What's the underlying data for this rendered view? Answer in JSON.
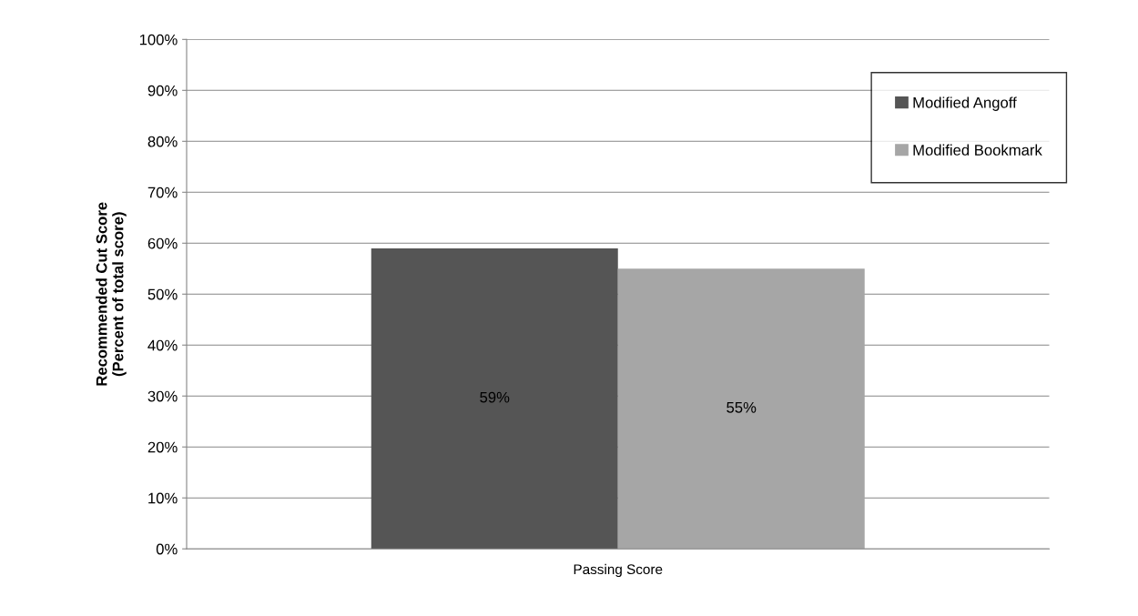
{
  "chart_data": {
    "type": "bar",
    "categories": [
      "Passing Score"
    ],
    "ylabel": "Recommended Cut Score\n(Percent of total score)",
    "series": [
      {
        "name": "Modified Angoff",
        "color": "#555555",
        "values": [
          59
        ],
        "value_labels": [
          "59%"
        ]
      },
      {
        "name": "Modified Bookmark",
        "color": "#a6a6a6",
        "values": [
          55
        ],
        "value_labels": [
          "55%"
        ]
      }
    ],
    "ylim": [
      0,
      100
    ],
    "yticks": [
      {
        "value": 0,
        "label": "0%"
      },
      {
        "value": 10,
        "label": "10%"
      },
      {
        "value": 20,
        "label": "20%"
      },
      {
        "value": 30,
        "label": "30%"
      },
      {
        "value": 40,
        "label": "40%"
      },
      {
        "value": 50,
        "label": "50%"
      },
      {
        "value": 60,
        "label": "60%"
      },
      {
        "value": 70,
        "label": "70%"
      },
      {
        "value": 80,
        "label": "80%"
      },
      {
        "value": 90,
        "label": "90%"
      },
      {
        "value": 100,
        "label": "100%"
      }
    ],
    "grid": "y",
    "legend": "top right"
  }
}
